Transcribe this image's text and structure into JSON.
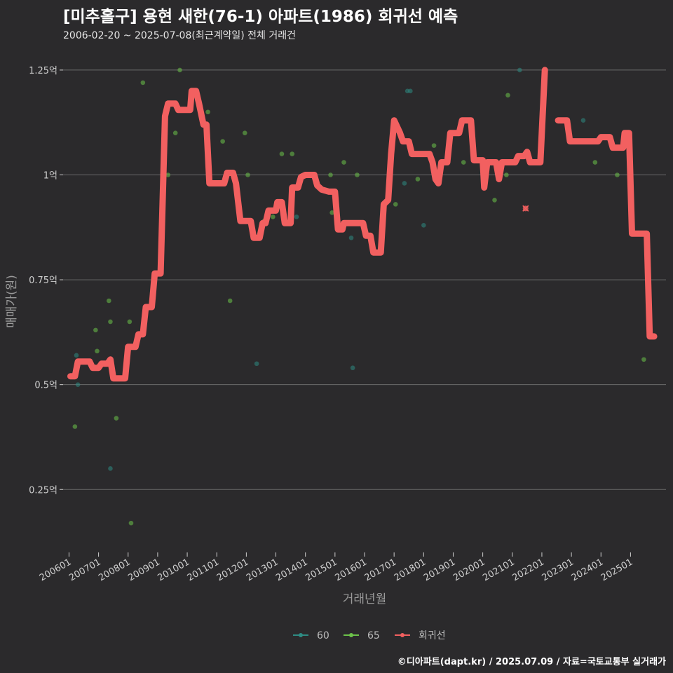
{
  "header": {
    "title": "[미추홀구] 용현 새한(76-1) 아파트(1986) 회귀선 예측",
    "subtitle": "2006-02-20 ~ 2025-07-08(최근계약일) 전체 거래건"
  },
  "caption": "©디아파트(dapt.kr) / 2025.07.09 / 자료=국토교통부 실거래가",
  "colors": {
    "s60": "#2e8b83",
    "s65": "#6cc24a",
    "regression": "#f26060",
    "grid": "#6a6a6a",
    "background": "#2b2a2c"
  },
  "chart_data": {
    "type": "scatter",
    "title": "[미추홀구] 용현 새한(76-1) 아파트(1986) 회귀선 예측",
    "subtitle": "2006-02-20 ~ 2025-07-08(최근계약일) 전체 거래건",
    "xlabel": "거래년월",
    "ylabel": "매매가(원)",
    "xlim": [
      2005.8,
      2026.2
    ],
    "ylim": [
      0.1,
      1.3
    ],
    "yticks": [
      {
        "value": 0.25,
        "label": "0.25억"
      },
      {
        "value": 0.5,
        "label": "0.5억"
      },
      {
        "value": 0.75,
        "label": "0.75억"
      },
      {
        "value": 1.0,
        "label": "1억"
      },
      {
        "value": 1.25,
        "label": "1.25억"
      }
    ],
    "xticks": [
      {
        "value": 2006.0,
        "label": "200601"
      },
      {
        "value": 2007.0,
        "label": "200701"
      },
      {
        "value": 2008.0,
        "label": "200801"
      },
      {
        "value": 2009.0,
        "label": "200901"
      },
      {
        "value": 2010.0,
        "label": "201001"
      },
      {
        "value": 2011.0,
        "label": "201101"
      },
      {
        "value": 2012.0,
        "label": "201201"
      },
      {
        "value": 2013.0,
        "label": "201301"
      },
      {
        "value": 2014.0,
        "label": "201401"
      },
      {
        "value": 2015.0,
        "label": "201501"
      },
      {
        "value": 2016.0,
        "label": "201601"
      },
      {
        "value": 2017.0,
        "label": "201701"
      },
      {
        "value": 2018.0,
        "label": "201801"
      },
      {
        "value": 2019.0,
        "label": "201901"
      },
      {
        "value": 2020.0,
        "label": "202001"
      },
      {
        "value": 2021.0,
        "label": "202101"
      },
      {
        "value": 2022.0,
        "label": "202201"
      },
      {
        "value": 2023.0,
        "label": "202301"
      },
      {
        "value": 2024.0,
        "label": "202401"
      },
      {
        "value": 2025.0,
        "label": "202501"
      }
    ],
    "legend": {
      "placement": "bottom",
      "items": [
        {
          "name": "60",
          "color": "#2e8b83"
        },
        {
          "name": "65",
          "color": "#6cc24a"
        },
        {
          "name": "회귀선",
          "color": "#f26060"
        }
      ]
    },
    "series": [
      {
        "name": "60",
        "color": "#2e8b83",
        "points": [
          [
            2006.25,
            0.57
          ],
          [
            2006.3,
            0.5
          ],
          [
            2007.4,
            0.3
          ],
          [
            2012.35,
            0.55
          ],
          [
            2013.7,
            0.9
          ],
          [
            2015.55,
            0.85
          ],
          [
            2015.6,
            0.54
          ],
          [
            2017.35,
            0.98
          ],
          [
            2017.45,
            1.2
          ],
          [
            2017.55,
            1.2
          ],
          [
            2018.0,
            0.88
          ],
          [
            2021.25,
            1.25
          ],
          [
            2023.4,
            1.13
          ]
        ]
      },
      {
        "name": "65",
        "color": "#6cc24a",
        "points": [
          [
            2006.2,
            0.4
          ],
          [
            2006.9,
            0.63
          ],
          [
            2006.95,
            0.58
          ],
          [
            2007.35,
            0.7
          ],
          [
            2007.4,
            0.65
          ],
          [
            2007.6,
            0.42
          ],
          [
            2008.05,
            0.65
          ],
          [
            2008.1,
            0.17
          ],
          [
            2008.5,
            1.22
          ],
          [
            2009.35,
            1.0
          ],
          [
            2009.6,
            1.1
          ],
          [
            2009.75,
            1.25
          ],
          [
            2010.7,
            1.15
          ],
          [
            2011.2,
            1.08
          ],
          [
            2011.45,
            0.7
          ],
          [
            2011.95,
            1.1
          ],
          [
            2012.05,
            1.0
          ],
          [
            2012.6,
            0.89
          ],
          [
            2012.9,
            0.9
          ],
          [
            2013.2,
            1.05
          ],
          [
            2013.55,
            1.05
          ],
          [
            2014.85,
            1.0
          ],
          [
            2014.9,
            0.91
          ],
          [
            2015.3,
            1.03
          ],
          [
            2015.75,
            1.0
          ],
          [
            2017.05,
            0.93
          ],
          [
            2017.8,
            0.99
          ],
          [
            2018.35,
            1.07
          ],
          [
            2019.35,
            1.03
          ],
          [
            2020.4,
            0.94
          ],
          [
            2020.8,
            1.0
          ],
          [
            2020.85,
            1.19
          ],
          [
            2023.8,
            1.03
          ],
          [
            2024.55,
            1.0
          ],
          [
            2025.45,
            0.56
          ]
        ]
      }
    ],
    "regression": {
      "name": "회귀선",
      "color": "#f26060",
      "points": [
        [
          2006.05,
          0.52
        ],
        [
          2006.2,
          0.52
        ],
        [
          2006.3,
          0.555
        ],
        [
          2006.7,
          0.555
        ],
        [
          2006.8,
          0.54
        ],
        [
          2007.0,
          0.54
        ],
        [
          2007.1,
          0.55
        ],
        [
          2007.3,
          0.55
        ],
        [
          2007.4,
          0.56
        ],
        [
          2007.5,
          0.515
        ],
        [
          2007.9,
          0.515
        ],
        [
          2008.0,
          0.59
        ],
        [
          2008.25,
          0.59
        ],
        [
          2008.35,
          0.62
        ],
        [
          2008.5,
          0.62
        ],
        [
          2008.6,
          0.685
        ],
        [
          2008.8,
          0.685
        ],
        [
          2008.9,
          0.765
        ],
        [
          2009.1,
          0.765
        ],
        [
          2009.25,
          1.14
        ],
        [
          2009.35,
          1.17
        ],
        [
          2009.6,
          1.17
        ],
        [
          2009.7,
          1.155
        ],
        [
          2010.1,
          1.155
        ],
        [
          2010.15,
          1.2
        ],
        [
          2010.3,
          1.2
        ],
        [
          2010.4,
          1.17
        ],
        [
          2010.55,
          1.12
        ],
        [
          2010.65,
          1.12
        ],
        [
          2010.75,
          0.98
        ],
        [
          2011.25,
          0.98
        ],
        [
          2011.35,
          1.005
        ],
        [
          2011.55,
          1.005
        ],
        [
          2011.65,
          0.98
        ],
        [
          2011.8,
          0.89
        ],
        [
          2012.15,
          0.89
        ],
        [
          2012.25,
          0.85
        ],
        [
          2012.45,
          0.85
        ],
        [
          2012.55,
          0.885
        ],
        [
          2012.65,
          0.885
        ],
        [
          2012.75,
          0.915
        ],
        [
          2013.0,
          0.915
        ],
        [
          2013.05,
          0.935
        ],
        [
          2013.2,
          0.935
        ],
        [
          2013.3,
          0.885
        ],
        [
          2013.5,
          0.885
        ],
        [
          2013.55,
          0.97
        ],
        [
          2013.75,
          0.97
        ],
        [
          2013.85,
          0.995
        ],
        [
          2014.0,
          1.0
        ],
        [
          2014.3,
          1.0
        ],
        [
          2014.4,
          0.975
        ],
        [
          2014.55,
          0.965
        ],
        [
          2014.8,
          0.96
        ],
        [
          2015.0,
          0.96
        ],
        [
          2015.1,
          0.87
        ],
        [
          2015.25,
          0.87
        ],
        [
          2015.3,
          0.885
        ],
        [
          2015.95,
          0.885
        ],
        [
          2016.05,
          0.855
        ],
        [
          2016.2,
          0.855
        ],
        [
          2016.3,
          0.815
        ],
        [
          2016.55,
          0.815
        ],
        [
          2016.65,
          0.93
        ],
        [
          2016.8,
          0.94
        ],
        [
          2016.9,
          1.05
        ],
        [
          2017.0,
          1.13
        ],
        [
          2017.2,
          1.1
        ],
        [
          2017.3,
          1.08
        ],
        [
          2017.5,
          1.08
        ],
        [
          2017.6,
          1.05
        ],
        [
          2017.9,
          1.05
        ],
        [
          2018.0,
          1.05
        ],
        [
          2018.2,
          1.05
        ],
        [
          2018.3,
          1.03
        ],
        [
          2018.4,
          0.99
        ],
        [
          2018.5,
          0.98
        ],
        [
          2018.6,
          1.03
        ],
        [
          2018.8,
          1.03
        ],
        [
          2018.9,
          1.1
        ],
        [
          2019.2,
          1.1
        ],
        [
          2019.3,
          1.13
        ],
        [
          2019.6,
          1.13
        ],
        [
          2019.7,
          1.035
        ],
        [
          2020.0,
          1.035
        ],
        [
          2020.05,
          0.97
        ],
        [
          2020.15,
          1.03
        ],
        [
          2020.45,
          1.03
        ],
        [
          2020.55,
          0.99
        ],
        [
          2020.65,
          1.03
        ],
        [
          2021.1,
          1.03
        ],
        [
          2021.2,
          1.045
        ],
        [
          2021.4,
          1.045
        ],
        [
          2021.5,
          1.055
        ],
        [
          2021.6,
          1.03
        ],
        [
          2021.95,
          1.03
        ],
        [
          2022.1,
          1.25
        ],
        null,
        [
          2022.55,
          1.13
        ],
        [
          2022.85,
          1.13
        ],
        [
          2022.95,
          1.08
        ],
        [
          2023.9,
          1.08
        ],
        [
          2024.0,
          1.09
        ],
        [
          2024.3,
          1.09
        ],
        [
          2024.4,
          1.065
        ],
        [
          2024.75,
          1.065
        ],
        [
          2024.8,
          1.1
        ],
        [
          2024.95,
          1.1
        ],
        [
          2025.05,
          0.86
        ],
        [
          2025.55,
          0.86
        ],
        [
          2025.65,
          0.615
        ],
        [
          2025.8,
          0.615
        ]
      ]
    },
    "annotations": [
      {
        "type": "x-marker",
        "x": 2021.45,
        "y": 0.92,
        "color": "#f26060"
      }
    ]
  }
}
